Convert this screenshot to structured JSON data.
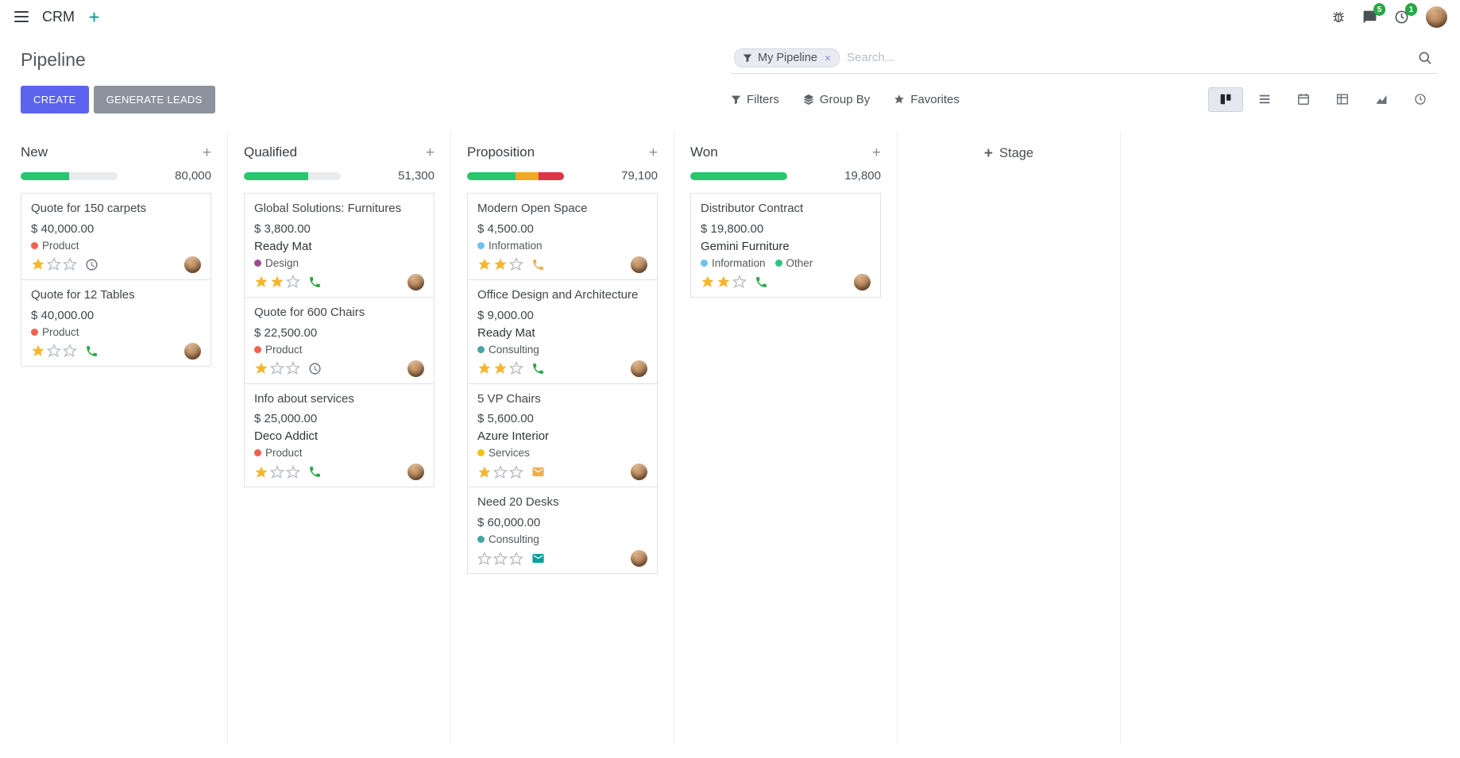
{
  "colors": {
    "primary_button": "#5c63ee",
    "secondary_button": "#8c939e",
    "progress_green": "#28c76f",
    "progress_yellow": "#f5a623",
    "progress_red": "#dc3545",
    "star_gold": "#f5b62e",
    "badge_green": "#28a745"
  },
  "navbar": {
    "brand": "CRM",
    "messages_badge": "5",
    "activities_badge": "1"
  },
  "control_panel": {
    "title": "Pipeline",
    "search": {
      "facet": "My Pipeline",
      "remove": "×",
      "placeholder": "Search..."
    },
    "create_label": "CREATE",
    "generate_leads_label": "GENERATE LEADS",
    "filters_label": "Filters",
    "group_by_label": "Group By",
    "favorites_label": "Favorites",
    "active_view": "kanban"
  },
  "board": {
    "add_stage_label": "Stage",
    "columns": [
      {
        "name": "New",
        "total": "80,000",
        "progress": [
          {
            "color": "#28c76f",
            "pct": 50
          }
        ],
        "cards": [
          {
            "title": "Quote for 150 carpets",
            "amount": "$ 40,000.00",
            "tags": [
              {
                "label": "Product",
                "color": "#f06050"
              }
            ],
            "stars": 1,
            "activity": {
              "icon": "clock",
              "color": "#6c757d"
            }
          },
          {
            "title": "Quote for 12 Tables",
            "amount": "$ 40,000.00",
            "tags": [
              {
                "label": "Product",
                "color": "#f06050"
              }
            ],
            "stars": 1,
            "activity": {
              "icon": "phone",
              "color": "#28a745"
            }
          }
        ]
      },
      {
        "name": "Qualified",
        "total": "51,300",
        "progress": [
          {
            "color": "#28c76f",
            "pct": 66
          }
        ],
        "cards": [
          {
            "title": "Global Solutions: Furnitures",
            "amount": "$ 3,800.00",
            "partner": "Ready Mat",
            "tags": [
              {
                "label": "Design",
                "color": "#9b4d8f"
              }
            ],
            "stars": 2,
            "activity": {
              "icon": "phone",
              "color": "#28a745"
            }
          },
          {
            "title": "Quote for 600 Chairs",
            "amount": "$ 22,500.00",
            "tags": [
              {
                "label": "Product",
                "color": "#f06050"
              }
            ],
            "stars": 1,
            "activity": {
              "icon": "clock",
              "color": "#6c757d"
            }
          },
          {
            "title": "Info about services",
            "amount": "$ 25,000.00",
            "partner": "Deco Addict",
            "tags": [
              {
                "label": "Product",
                "color": "#f06050"
              }
            ],
            "stars": 1,
            "activity": {
              "icon": "phone",
              "color": "#28a745"
            }
          }
        ]
      },
      {
        "name": "Proposition",
        "total": "79,100",
        "progress": [
          {
            "color": "#28c76f",
            "pct": 50
          },
          {
            "color": "#f5a623",
            "pct": 24
          },
          {
            "color": "#dc3545",
            "pct": 26
          }
        ],
        "cards": [
          {
            "title": "Modern Open Space",
            "amount": "$ 4,500.00",
            "tags": [
              {
                "label": "Information",
                "color": "#6cc1ed"
              }
            ],
            "stars": 2,
            "activity": {
              "icon": "phone",
              "color": "#f0ad4e"
            }
          },
          {
            "title": "Office Design and Architecture",
            "amount": "$ 9,000.00",
            "partner": "Ready Mat",
            "tags": [
              {
                "label": "Consulting",
                "color": "#47a5a0"
              }
            ],
            "stars": 2,
            "activity": {
              "icon": "phone",
              "color": "#28a745"
            }
          },
          {
            "title": "5 VP Chairs",
            "amount": "$ 5,600.00",
            "partner": "Azure Interior",
            "tags": [
              {
                "label": "Services",
                "color": "#f0c20c"
              }
            ],
            "stars": 1,
            "activity": {
              "icon": "envelope",
              "color": "#f0ad4e"
            }
          },
          {
            "title": "Need 20 Desks",
            "amount": "$ 60,000.00",
            "tags": [
              {
                "label": "Consulting",
                "color": "#47a5a0"
              }
            ],
            "stars": 0,
            "activity": {
              "icon": "envelope",
              "color": "#00a09d"
            }
          }
        ]
      },
      {
        "name": "Won",
        "total": "19,800",
        "progress": [
          {
            "color": "#28c76f",
            "pct": 100
          }
        ],
        "cards": [
          {
            "title": "Distributor Contract",
            "amount": "$ 19,800.00",
            "partner": "Gemini Furniture",
            "tags": [
              {
                "label": "Information",
                "color": "#6cc1ed"
              },
              {
                "label": "Other",
                "color": "#30c381"
              }
            ],
            "stars": 2,
            "activity": {
              "icon": "phone",
              "color": "#28a745"
            }
          }
        ]
      }
    ]
  }
}
